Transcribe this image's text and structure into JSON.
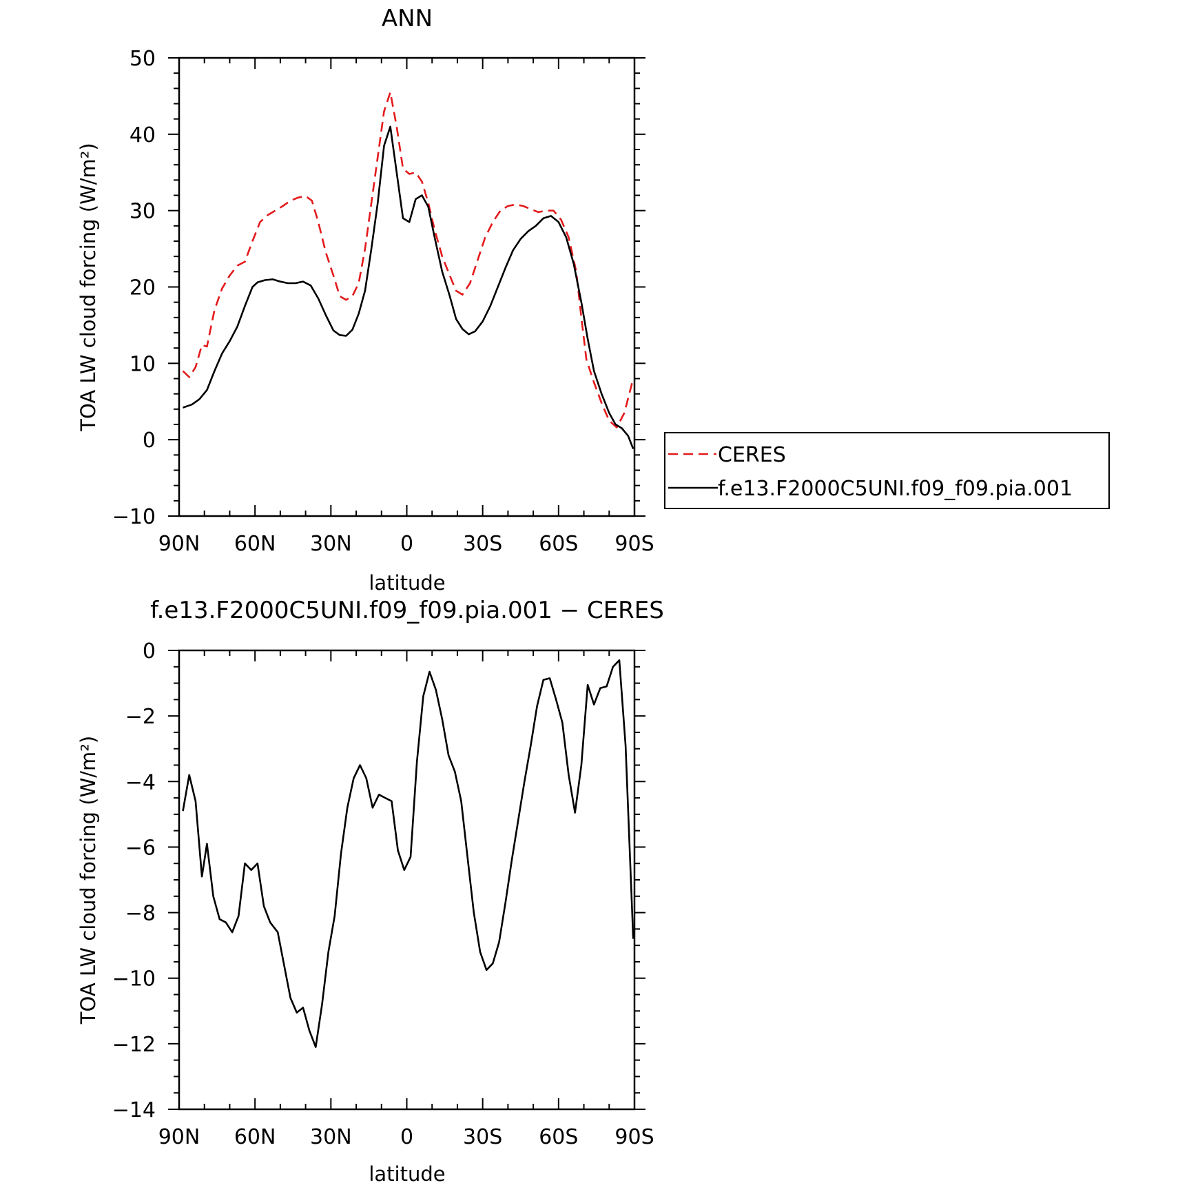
{
  "chart_data": [
    {
      "type": "line",
      "title": "ANN",
      "xlabel": "latitude",
      "ylabel": "TOA LW cloud forcing (W/m²)",
      "xlim": [
        -90,
        90
      ],
      "ylim": [
        -10,
        50
      ],
      "xticks": [
        -90,
        -60,
        -30,
        0,
        30,
        60,
        90
      ],
      "xtick_labels": [
        "90N",
        "60N",
        "30N",
        "0",
        "30S",
        "60S",
        "90S"
      ],
      "yticks": [
        -10,
        0,
        10,
        20,
        30,
        40,
        50
      ],
      "ytick_labels": [
        "−10",
        "0",
        "10",
        "20",
        "30",
        "40",
        "50"
      ],
      "legend_position": "right",
      "series": [
        {
          "name": "CERES",
          "color": "#e31a1c",
          "dash": "dashed",
          "points": [
            [
              -88.5,
              9
            ],
            [
              -86,
              8.2
            ],
            [
              -83.5,
              9.5
            ],
            [
              -81,
              12.4
            ],
            [
              -79,
              12.2
            ],
            [
              -76,
              17
            ],
            [
              -73,
              19.8
            ],
            [
              -70,
              21.5
            ],
            [
              -67,
              22.8
            ],
            [
              -64,
              23.3
            ],
            [
              -61,
              26
            ],
            [
              -58,
              28.5
            ],
            [
              -55,
              29.4
            ],
            [
              -52,
              30
            ],
            [
              -49,
              30.6
            ],
            [
              -46,
              31.3
            ],
            [
              -43,
              31.7
            ],
            [
              -40,
              31.9
            ],
            [
              -37.5,
              31.3
            ],
            [
              -35,
              28.5
            ],
            [
              -32,
              24.5
            ],
            [
              -29,
              21.5
            ],
            [
              -26.5,
              18.8
            ],
            [
              -24,
              18.3
            ],
            [
              -21.5,
              18.8
            ],
            [
              -19,
              20.5
            ],
            [
              -16.5,
              25
            ],
            [
              -14,
              31
            ],
            [
              -11.5,
              37
            ],
            [
              -9,
              43
            ],
            [
              -6.5,
              45.5
            ],
            [
              -4,
              41
            ],
            [
              -1.5,
              35.5
            ],
            [
              1,
              34.8
            ],
            [
              3.5,
              35
            ],
            [
              6,
              33.8
            ],
            [
              8.5,
              31
            ],
            [
              11,
              27.5
            ],
            [
              14,
              24
            ],
            [
              17,
              21.5
            ],
            [
              19.5,
              19.5
            ],
            [
              22,
              19
            ],
            [
              25,
              20.5
            ],
            [
              28,
              23.5
            ],
            [
              31,
              26.5
            ],
            [
              34,
              28.5
            ],
            [
              37,
              30
            ],
            [
              40,
              30.6
            ],
            [
              43,
              30.8
            ],
            [
              46,
              30.6
            ],
            [
              49,
              30.2
            ],
            [
              52,
              29.8
            ],
            [
              55,
              30
            ],
            [
              58,
              30
            ],
            [
              61,
              28.8
            ],
            [
              64,
              26.5
            ],
            [
              67,
              22
            ],
            [
              69,
              16
            ],
            [
              71,
              10.5
            ],
            [
              74,
              7.5
            ],
            [
              77,
              4.8
            ],
            [
              80,
              2.5
            ],
            [
              83,
              1.6
            ],
            [
              86,
              3.5
            ],
            [
              89.5,
              8
            ]
          ]
        },
        {
          "name": "f.e13.F2000C5UNI.f09_f09.pia.001",
          "color": "#000000",
          "dash": "solid",
          "points": [
            [
              -88.5,
              4.2
            ],
            [
              -85,
              4.6
            ],
            [
              -82,
              5.3
            ],
            [
              -79,
              6.5
            ],
            [
              -76,
              9
            ],
            [
              -73,
              11.3
            ],
            [
              -70,
              12.9
            ],
            [
              -67,
              14.8
            ],
            [
              -64,
              17.5
            ],
            [
              -61,
              20
            ],
            [
              -59,
              20.6
            ],
            [
              -56,
              20.9
            ],
            [
              -53,
              21
            ],
            [
              -50,
              20.7
            ],
            [
              -47,
              20.5
            ],
            [
              -44,
              20.5
            ],
            [
              -41,
              20.7
            ],
            [
              -38,
              20.2
            ],
            [
              -35,
              18.5
            ],
            [
              -32,
              16.3
            ],
            [
              -29,
              14.3
            ],
            [
              -26.5,
              13.7
            ],
            [
              -24,
              13.6
            ],
            [
              -21.5,
              14.4
            ],
            [
              -19,
              16.5
            ],
            [
              -16.5,
              19.5
            ],
            [
              -14,
              25
            ],
            [
              -11.5,
              31
            ],
            [
              -9,
              38.5
            ],
            [
              -6.5,
              41
            ],
            [
              -4,
              35
            ],
            [
              -1.5,
              29
            ],
            [
              1,
              28.5
            ],
            [
              3.5,
              31.5
            ],
            [
              6,
              32
            ],
            [
              8.5,
              30.5
            ],
            [
              11,
              26.5
            ],
            [
              14,
              22
            ],
            [
              17,
              18.8
            ],
            [
              19.5,
              15.8
            ],
            [
              22,
              14.5
            ],
            [
              24.5,
              13.8
            ],
            [
              27,
              14.2
            ],
            [
              30,
              15.5
            ],
            [
              33,
              17.5
            ],
            [
              36,
              20
            ],
            [
              39,
              22.5
            ],
            [
              42,
              24.8
            ],
            [
              45,
              26.3
            ],
            [
              48,
              27.3
            ],
            [
              51,
              28
            ],
            [
              54,
              29
            ],
            [
              57,
              29.3
            ],
            [
              60,
              28.5
            ],
            [
              63,
              26.5
            ],
            [
              66,
              23
            ],
            [
              69,
              18
            ],
            [
              71.5,
              13.2
            ],
            [
              74,
              9
            ],
            [
              77,
              6
            ],
            [
              80,
              3.5
            ],
            [
              82.5,
              2
            ],
            [
              85,
              1.5
            ],
            [
              87.5,
              0.5
            ],
            [
              89.5,
              -1.2
            ]
          ]
        }
      ]
    },
    {
      "type": "line",
      "title": "f.e13.F2000C5UNI.f09_f09.pia.001 − CERES",
      "xlabel": "latitude",
      "ylabel": "TOA LW cloud forcing (W/m²)",
      "xlim": [
        -90,
        90
      ],
      "ylim": [
        -14,
        0
      ],
      "xticks": [
        -90,
        -60,
        -30,
        0,
        30,
        60,
        90
      ],
      "xtick_labels": [
        "90N",
        "60N",
        "30N",
        "0",
        "30S",
        "60S",
        "90S"
      ],
      "yticks": [
        -14,
        -12,
        -10,
        -8,
        -6,
        -4,
        -2,
        0
      ],
      "ytick_labels": [
        "−14",
        "−12",
        "−10",
        "−8",
        "−6",
        "−4",
        "−2",
        "0"
      ],
      "series": [
        {
          "color": "#000000",
          "dash": "solid",
          "points": [
            [
              -88.5,
              -4.9
            ],
            [
              -86,
              -3.8
            ],
            [
              -83.5,
              -4.6
            ],
            [
              -81,
              -6.9
            ],
            [
              -79,
              -5.9
            ],
            [
              -76.5,
              -7.5
            ],
            [
              -74,
              -8.2
            ],
            [
              -71.5,
              -8.3
            ],
            [
              -69,
              -8.6
            ],
            [
              -66.5,
              -8.1
            ],
            [
              -64,
              -6.5
            ],
            [
              -61.5,
              -6.7
            ],
            [
              -59,
              -6.5
            ],
            [
              -56.5,
              -7.8
            ],
            [
              -54,
              -8.3
            ],
            [
              -51,
              -8.6
            ],
            [
              -48.5,
              -9.6
            ],
            [
              -46,
              -10.6
            ],
            [
              -43.5,
              -11.05
            ],
            [
              -41,
              -10.9
            ],
            [
              -38.5,
              -11.6
            ],
            [
              -36,
              -12.1
            ],
            [
              -33.5,
              -10.8
            ],
            [
              -31,
              -9.2
            ],
            [
              -28.5,
              -8.1
            ],
            [
              -26,
              -6.2
            ],
            [
              -23.5,
              -4.8
            ],
            [
              -21,
              -3.9
            ],
            [
              -18.5,
              -3.5
            ],
            [
              -16,
              -3.9
            ],
            [
              -13.5,
              -4.8
            ],
            [
              -11,
              -4.4
            ],
            [
              -8.5,
              -4.5
            ],
            [
              -6,
              -4.6
            ],
            [
              -3.5,
              -6.1
            ],
            [
              -1,
              -6.7
            ],
            [
              1.5,
              -6.3
            ],
            [
              4,
              -3.4
            ],
            [
              6.5,
              -1.4
            ],
            [
              9,
              -0.65
            ],
            [
              11.5,
              -1.2
            ],
            [
              14,
              -2.1
            ],
            [
              16.5,
              -3.2
            ],
            [
              19,
              -3.7
            ],
            [
              21.5,
              -4.6
            ],
            [
              24,
              -6.3
            ],
            [
              26.5,
              -8
            ],
            [
              29,
              -9.2
            ],
            [
              31.5,
              -9.75
            ],
            [
              34,
              -9.55
            ],
            [
              36.5,
              -8.9
            ],
            [
              39,
              -7.7
            ],
            [
              41.5,
              -6.4
            ],
            [
              44,
              -5.2
            ],
            [
              46.5,
              -4
            ],
            [
              49,
              -2.9
            ],
            [
              51.5,
              -1.7
            ],
            [
              54,
              -0.9
            ],
            [
              56.5,
              -0.85
            ],
            [
              59,
              -1.5
            ],
            [
              61.5,
              -2.2
            ],
            [
              64,
              -3.8
            ],
            [
              66.5,
              -4.95
            ],
            [
              69,
              -3.5
            ],
            [
              71.5,
              -1.05
            ],
            [
              74,
              -1.65
            ],
            [
              76.5,
              -1.15
            ],
            [
              79,
              -1.1
            ],
            [
              81.5,
              -0.5
            ],
            [
              84,
              -0.3
            ],
            [
              86.5,
              -2.9
            ],
            [
              89.5,
              -8.8
            ]
          ]
        }
      ]
    }
  ],
  "legend": {
    "entries": [
      {
        "label": "CERES",
        "color": "#e31a1c",
        "dash": "dashed"
      },
      {
        "label": "f.e13.F2000C5UNI.f09_f09.pia.001",
        "color": "#000000",
        "dash": "solid"
      }
    ]
  }
}
